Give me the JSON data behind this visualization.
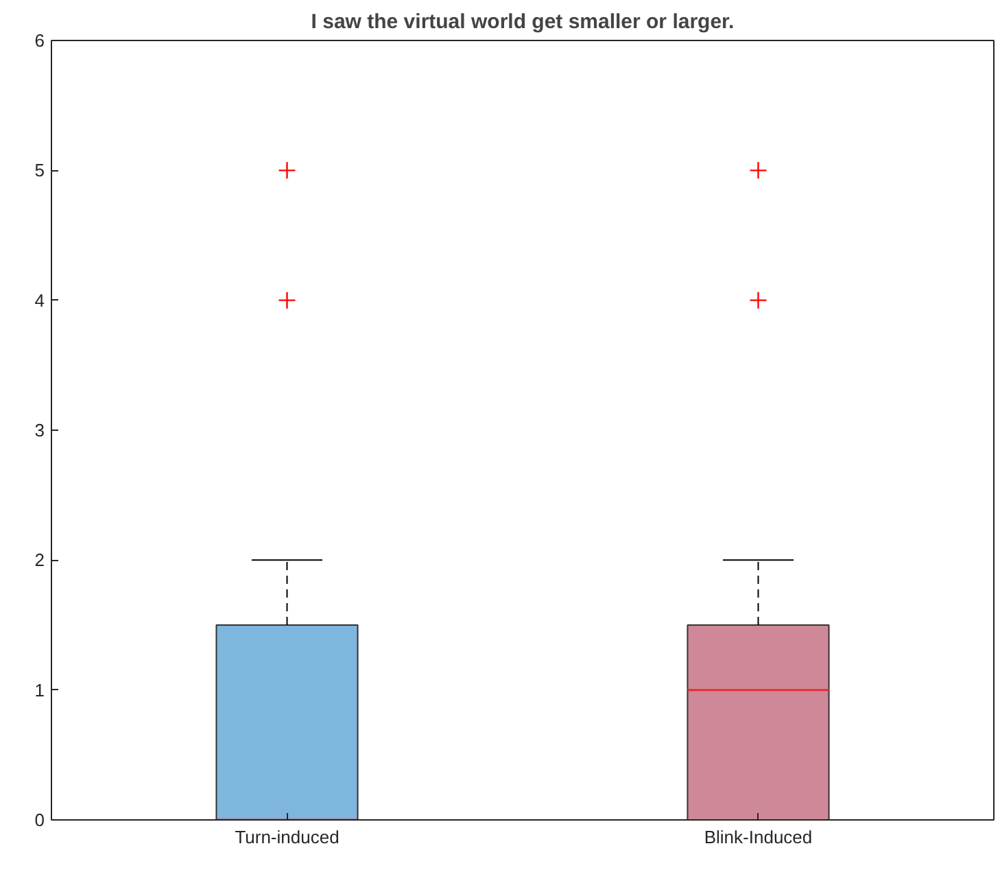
{
  "chart_data": {
    "type": "box",
    "title": "I saw the virtual world get smaller or larger.",
    "categories": [
      "Turn-induced",
      "Blink-Induced"
    ],
    "boxes": [
      {
        "low": 0,
        "q1": 0,
        "median": 0,
        "q3": 1.5,
        "high": 2,
        "outliers": [
          4,
          5
        ]
      },
      {
        "low": 0,
        "q1": 0,
        "median": 1,
        "q3": 1.5,
        "high": 2,
        "outliers": [
          4,
          5
        ]
      }
    ],
    "colors": [
      "#7eb6de",
      "#cf8898"
    ],
    "ylim": [
      0,
      6
    ],
    "yticks": [
      0,
      1,
      2,
      3,
      4,
      5,
      6
    ],
    "grid": false
  }
}
